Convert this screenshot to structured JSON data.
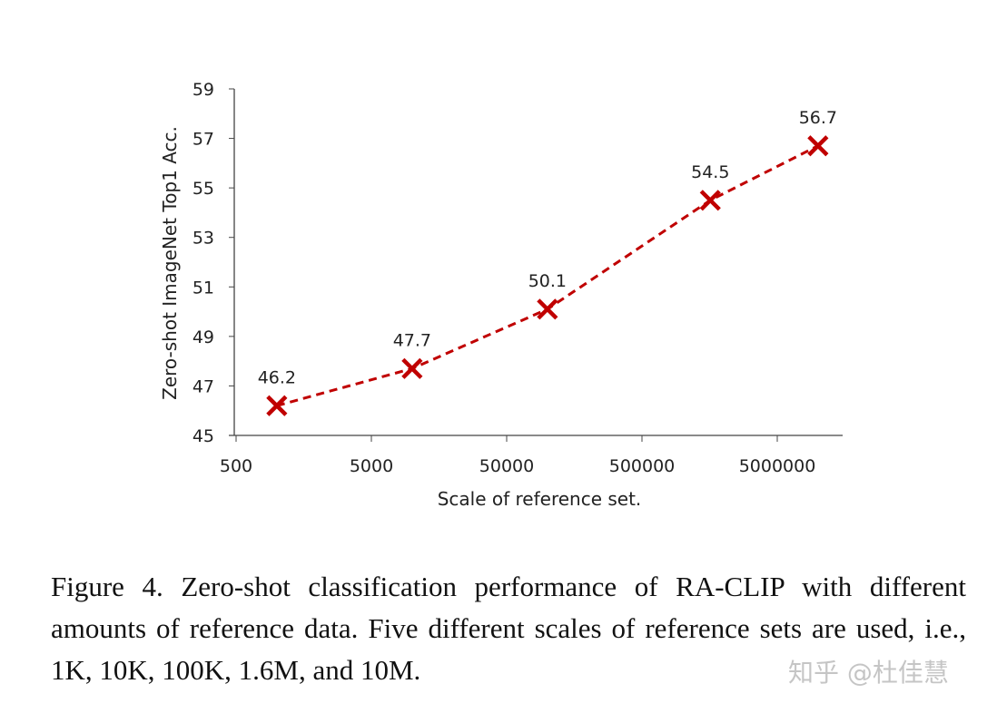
{
  "chart_data": {
    "type": "line",
    "xlabel": "Scale of reference set.",
    "ylabel": "Zero-shot ImageNet Top1 Acc.",
    "x_scale": "log",
    "xlim": [
      500,
      10000000
    ],
    "ylim": [
      45,
      59
    ],
    "x_ticks": [
      "500",
      "5000",
      "50000",
      "500000",
      "5000000"
    ],
    "y_ticks": [
      "45",
      "47",
      "49",
      "51",
      "53",
      "55",
      "57",
      "59"
    ],
    "grid": false,
    "series": [
      {
        "x": [
          1000,
          10000,
          100000,
          1600000,
          10000000
        ],
        "values": [
          46.2,
          47.7,
          50.1,
          54.5,
          56.7
        ],
        "labels": [
          "46.2",
          "47.7",
          "50.1",
          "54.5",
          "56.7"
        ],
        "color": "#c00000",
        "marker": "x",
        "line_style": "dashed"
      }
    ]
  },
  "caption": "Figure 4.  Zero-shot classification performance of RA-CLIP with different amounts of reference data.  Five different scales of reference sets are used, i.e., 1K, 10K, 100K, 1.6M, and 10M.",
  "watermark": "知乎 @杜佳慧"
}
